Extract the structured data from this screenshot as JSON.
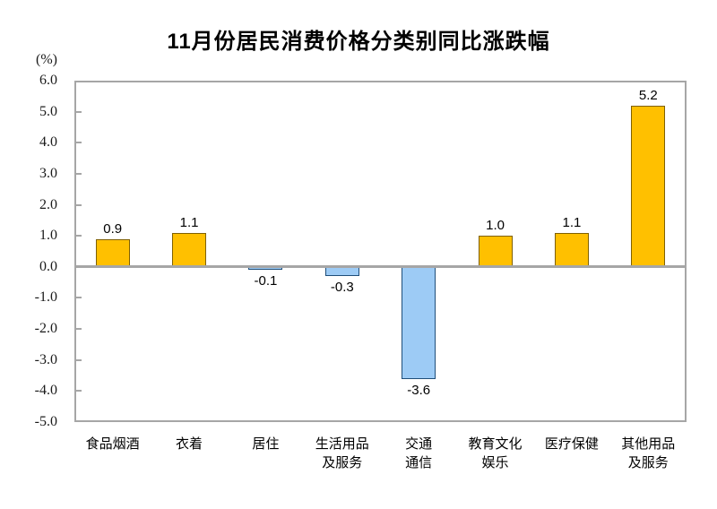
{
  "chart_data": {
    "type": "bar",
    "title": "11月份居民消费价格分类别同比涨跌幅",
    "ylabel": "(%)",
    "xlabel": "",
    "ylim": [
      -5.0,
      6.0
    ],
    "y_tick_step": 1.0,
    "y_ticks": [
      "6.0",
      "5.0",
      "4.0",
      "3.0",
      "2.0",
      "1.0",
      "0.0",
      "-1.0",
      "-2.0",
      "-3.0",
      "-4.0",
      "-5.0"
    ],
    "categories": [
      "食品烟酒",
      "衣着",
      "居住",
      "生活用品及服务",
      "交通通信",
      "教育文化娱乐",
      "医疗保健",
      "其他用品及服务"
    ],
    "category_label_lines": [
      [
        "食品烟酒"
      ],
      [
        "衣着"
      ],
      [
        "居住"
      ],
      [
        "生活用品",
        "及服务"
      ],
      [
        "交通",
        "通信"
      ],
      [
        "教育文化",
        "娱乐"
      ],
      [
        "医疗保健"
      ],
      [
        "其他用品",
        "及服务"
      ]
    ],
    "values": [
      0.9,
      1.1,
      -0.1,
      -0.3,
      -3.6,
      1.0,
      1.1,
      5.2
    ],
    "value_labels": [
      "0.9",
      "1.1",
      "-0.1",
      "-0.3",
      "-3.6",
      "1.0",
      "1.1",
      "5.2"
    ],
    "grid": false,
    "legend": false,
    "colors": {
      "positive_fill": "#FFC000",
      "positive_border": "#7F6000",
      "negative_fill": "#9DCBF5",
      "negative_border": "#1F4E79",
      "axis_line": "#A6A6A6",
      "plot_border": "#A6A6A6",
      "text": "#000000"
    }
  }
}
